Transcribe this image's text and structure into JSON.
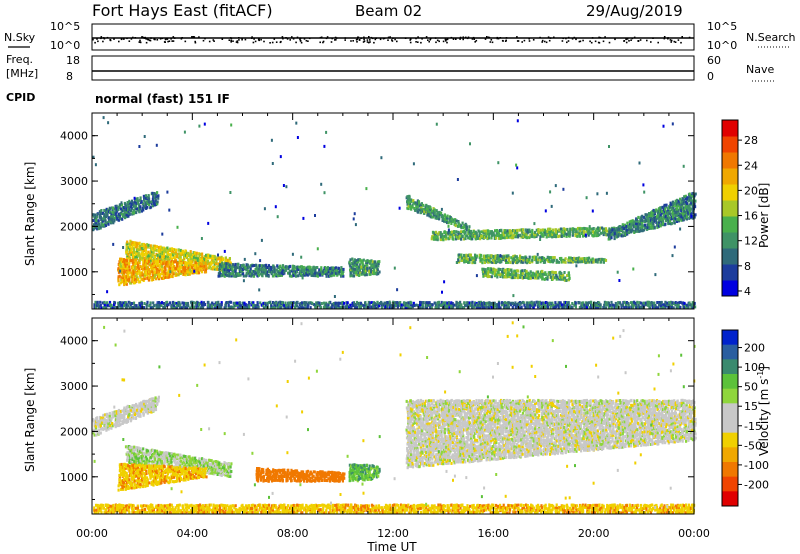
{
  "header": {
    "title": "Fort Hays East (fitACF)",
    "beam": "Beam 02",
    "date": "29/Aug/2019"
  },
  "status_panels": {
    "nsky_label": "N.Sky",
    "nsky_ticks": [
      "10^5",
      "10^0"
    ],
    "nsearch_label": "N.Search",
    "nsearch_ticks": [
      "10^5",
      "10^0"
    ],
    "freq_label_line1": "Freq.",
    "freq_label_line2": "[MHz]",
    "freq_ticks": [
      "18",
      "8"
    ],
    "nave_label": "Nave",
    "nave_ticks": [
      "60",
      "0"
    ],
    "cpid_label": "CPID",
    "cpid_text": "normal (fast) 151 IF"
  },
  "panels": {
    "ylabel": "Slant Range [km]",
    "yticks": [
      "4000",
      "3000",
      "2000",
      "1000"
    ],
    "xticks": [
      "00:00",
      "04:00",
      "08:00",
      "12:00",
      "16:00",
      "20:00",
      "00:00"
    ],
    "xlabel": "Time UT"
  },
  "power_colorbar": {
    "label": "Power [dB]",
    "ticks": [
      "28",
      "24",
      "20",
      "16",
      "12",
      "8",
      "4"
    ],
    "colors": [
      "#0000e0",
      "#1c3c9c",
      "#2f6a7a",
      "#3f9366",
      "#49b04c",
      "#a8c828",
      "#f0d000",
      "#f0a800",
      "#f07800",
      "#f04400",
      "#e00000"
    ]
  },
  "velocity_colorbar": {
    "label": "Velocity [m s^-1]",
    "ticks": [
      "200",
      "100",
      "50",
      "15",
      "-15",
      "-50",
      "-100",
      "-200"
    ],
    "colors": [
      "#0022cc",
      "#2a5ea0",
      "#3a8a6e",
      "#5cc23a",
      "#8fd63c",
      "#c8c8c8",
      "#c8c8c8",
      "#f0d000",
      "#f0a800",
      "#f07800",
      "#f04400",
      "#e00000"
    ]
  },
  "chart_data": {
    "type": "heatmap",
    "x_range_hours": [
      0,
      24
    ],
    "y_range_km": [
      180,
      4500
    ],
    "power_regions": [
      {
        "t": [
          0.0,
          2.6
        ],
        "r0": [
          1900,
          2500
        ],
        "r1": [
          2300,
          2800
        ],
        "level": 7
      },
      {
        "t": [
          1.3,
          5.5
        ],
        "r0": [
          1300,
          1000
        ],
        "r1": [
          1700,
          1300
        ],
        "level": 18
      },
      {
        "t": [
          1.0,
          4.5
        ],
        "r0": [
          700,
          1000
        ],
        "r1": [
          1300,
          1200
        ],
        "level": 22
      },
      {
        "t": [
          5.0,
          10.0
        ],
        "r0": [
          900,
          900
        ],
        "r1": [
          1200,
          1100
        ],
        "level": 8
      },
      {
        "t": [
          10.2,
          11.4
        ],
        "r0": [
          900,
          950
        ],
        "r1": [
          1300,
          1250
        ],
        "level": 10
      },
      {
        "t": [
          12.5,
          15.0
        ],
        "r0": [
          2700,
          2000
        ],
        "r1": [
          2400,
          1900
        ],
        "level": 10
      },
      {
        "t": [
          13.5,
          21.0
        ],
        "r0": [
          1900,
          2000
        ],
        "r1": [
          1700,
          1800
        ],
        "level": 12
      },
      {
        "t": [
          14.5,
          20.5
        ],
        "r0": [
          1400,
          1300
        ],
        "r1": [
          1200,
          1200
        ],
        "level": 12
      },
      {
        "t": [
          15.5,
          19.0
        ],
        "r0": [
          1100,
          1000
        ],
        "r1": [
          900,
          800
        ],
        "level": 12
      },
      {
        "t": [
          20.5,
          24.0
        ],
        "r0": [
          1900,
          2800
        ],
        "r1": [
          1700,
          2200
        ],
        "level": 8
      },
      {
        "t": [
          0.0,
          24.0
        ],
        "r0": [
          200,
          200
        ],
        "r1": [
          350,
          350
        ],
        "level": 6
      }
    ],
    "velocity_regions": [
      {
        "t": [
          0.0,
          2.6
        ],
        "r0": [
          1900,
          2500
        ],
        "r1": [
          2300,
          2800
        ],
        "velocity": 0
      },
      {
        "t": [
          1.3,
          5.5
        ],
        "r0": [
          1300,
          1000
        ],
        "r1": [
          1700,
          1300
        ],
        "velocity": 20
      },
      {
        "t": [
          1.0,
          4.5
        ],
        "r0": [
          700,
          1000
        ],
        "r1": [
          1300,
          1200
        ],
        "velocity": -40
      },
      {
        "t": [
          6.5,
          10.0
        ],
        "r0": [
          900,
          900
        ],
        "r1": [
          1200,
          1100
        ],
        "velocity": -80
      },
      {
        "t": [
          10.2,
          11.4
        ],
        "r0": [
          900,
          950
        ],
        "r1": [
          1300,
          1250
        ],
        "velocity": 40
      },
      {
        "t": [
          12.5,
          24.0
        ],
        "r0": [
          1200,
          1800
        ],
        "r1": [
          2700,
          2700
        ],
        "velocity": 0
      },
      {
        "t": [
          0.0,
          24.0
        ],
        "r0": [
          200,
          200
        ],
        "r1": [
          400,
          400
        ],
        "velocity": -40
      }
    ]
  }
}
